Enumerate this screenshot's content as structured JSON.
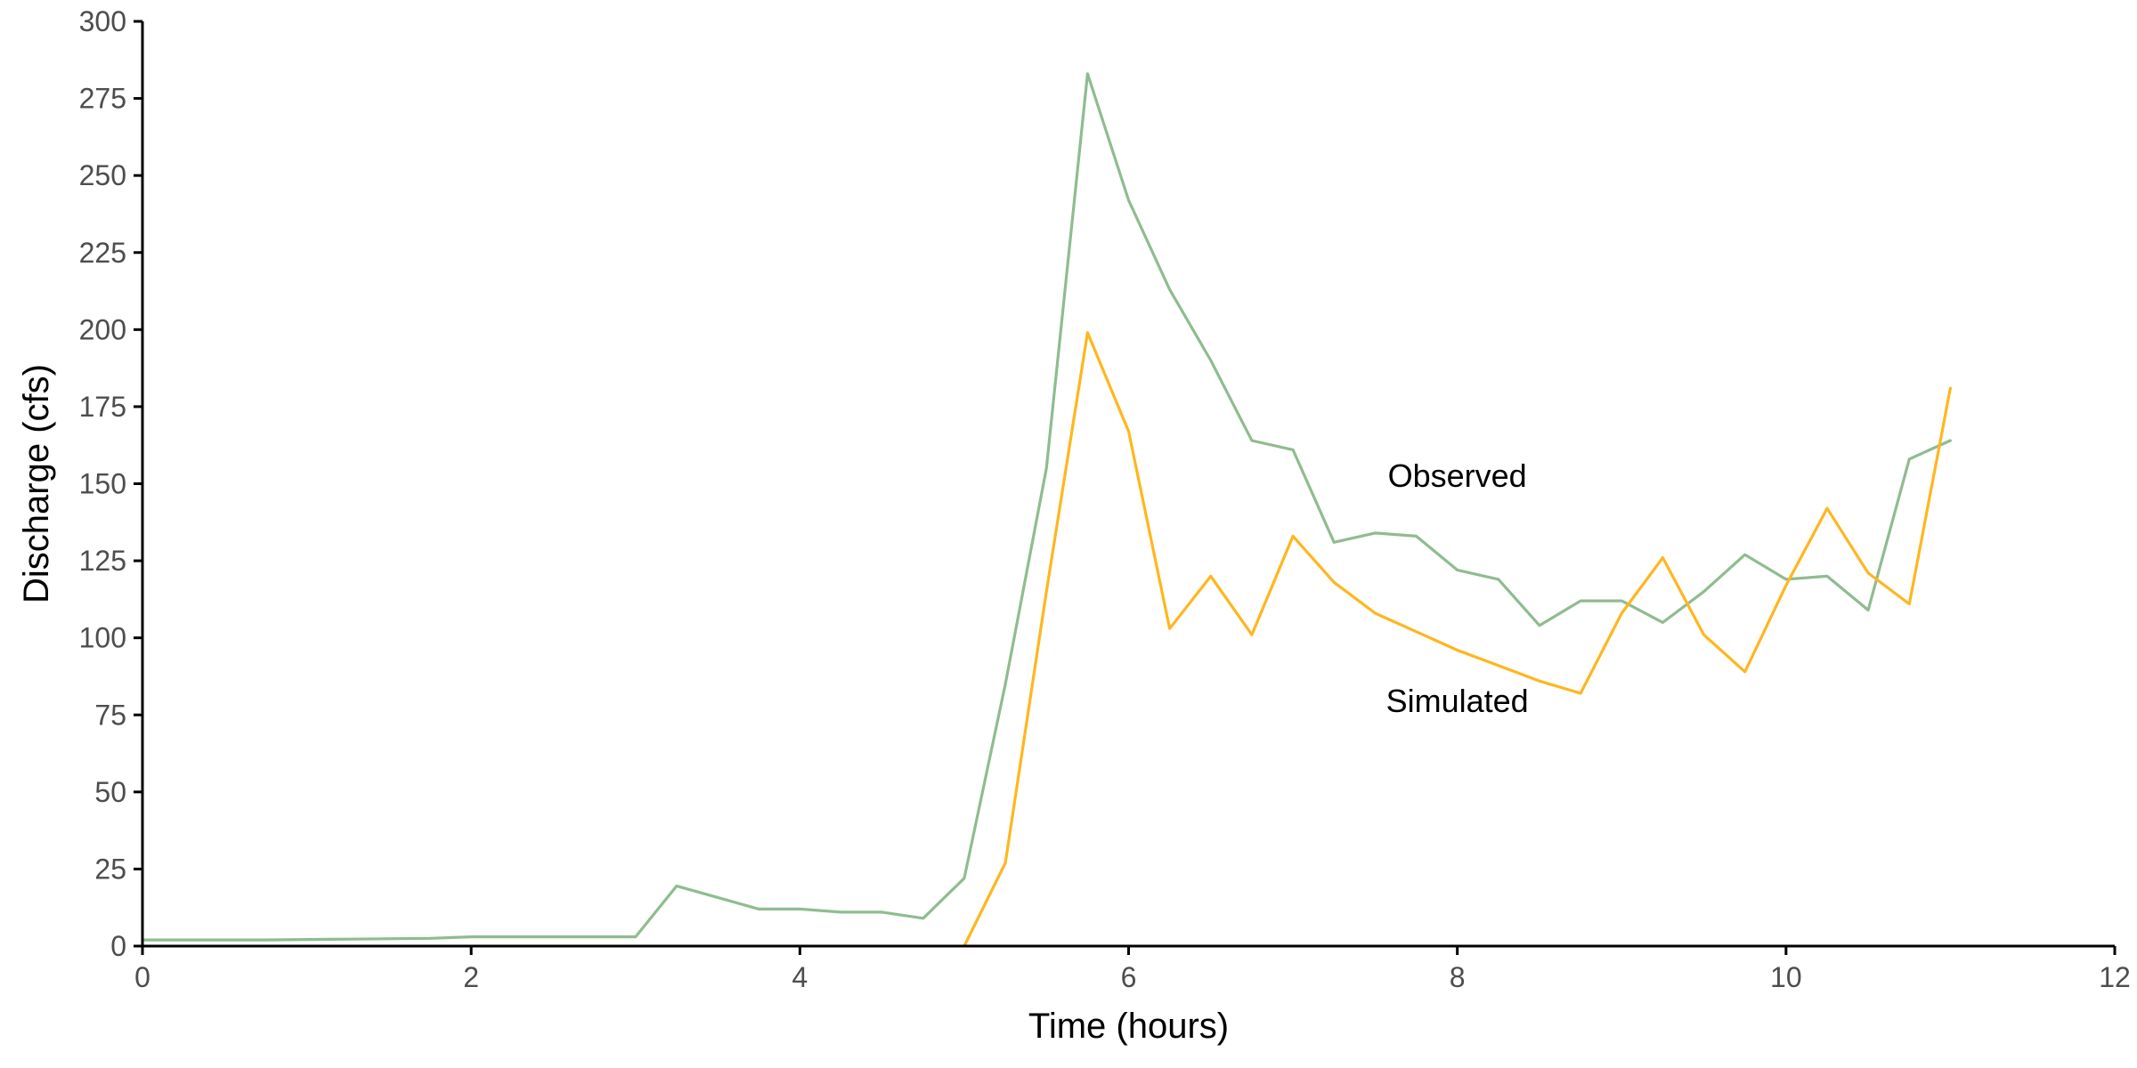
{
  "chart_data": {
    "type": "line",
    "xlabel": "Time (hours)",
    "ylabel": "Discharge (cfs)",
    "xlim": [
      0,
      12
    ],
    "ylim": [
      0,
      300
    ],
    "xticks": [
      0,
      2,
      4,
      6,
      8,
      10,
      12
    ],
    "yticks": [
      0,
      25,
      50,
      75,
      100,
      125,
      150,
      175,
      200,
      225,
      250,
      275,
      300
    ],
    "grid": false,
    "legend": "none",
    "series": [
      {
        "name": "Observed",
        "color": "#8fbc8f",
        "x": [
          0,
          0.75,
          1.75,
          2.0,
          3.0,
          3.25,
          3.75,
          4.0,
          4.25,
          4.5,
          4.75,
          5.0,
          5.25,
          5.5,
          5.75,
          6.0,
          6.25,
          6.5,
          6.75,
          7.0,
          7.25,
          7.5,
          7.75,
          8.0,
          8.25,
          8.5,
          8.75,
          9.0,
          9.25,
          9.5,
          9.75,
          10.0,
          10.25,
          10.5,
          10.75,
          11.0
        ],
        "y": [
          2,
          2,
          2.5,
          3,
          3,
          19.5,
          12,
          12,
          11,
          11,
          9,
          22,
          85,
          155,
          283,
          242,
          213,
          190,
          164,
          161,
          131,
          134,
          133,
          122,
          119,
          104,
          112,
          112,
          105,
          115,
          127,
          119,
          120,
          109,
          158,
          164
        ]
      },
      {
        "name": "Simulated",
        "color": "#ffb61e",
        "x": [
          5.0,
          5.25,
          5.5,
          5.75,
          6.0,
          6.25,
          6.5,
          6.75,
          7.0,
          7.25,
          7.5,
          7.75,
          8.0,
          8.25,
          8.5,
          8.75,
          9.0,
          9.25,
          9.5,
          9.75,
          10.0,
          10.25,
          10.5,
          10.75,
          11.0
        ],
        "y": [
          0,
          27,
          115,
          199,
          167,
          103,
          120,
          101,
          133,
          118,
          108,
          102,
          96,
          91,
          86,
          82,
          108,
          126,
          101,
          89,
          117,
          142,
          121,
          111,
          181
        ]
      }
    ],
    "annotations": [
      {
        "text": "Observed",
        "x": 8.0,
        "y": 149
      },
      {
        "text": "Simulated",
        "x": 8.0,
        "y": 76
      }
    ]
  }
}
